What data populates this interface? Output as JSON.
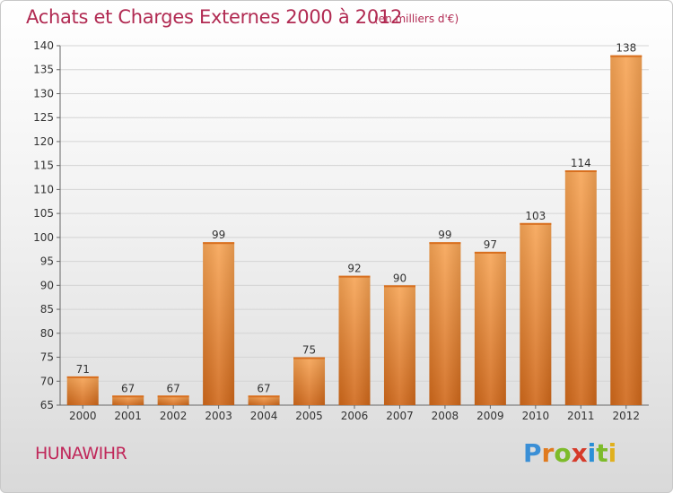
{
  "header": {
    "title": "Achats et Charges Externes 2000 à 2012",
    "subtitle": "(en milliers d'€)"
  },
  "footer": {
    "town": "HUNAWIHR",
    "logo_letters": [
      "P",
      "r",
      "o",
      "x",
      "i",
      "t",
      "i"
    ],
    "logo_colors": [
      "#3a8fd6",
      "#e07a1e",
      "#7dbb2a",
      "#d63a2a",
      "#2a8fd6",
      "#7dbb2a",
      "#e0b01e"
    ]
  },
  "chart_data": {
    "type": "bar",
    "title": "Achats et Charges Externes 2000 à 2012",
    "subtitle": "(en milliers d'€)",
    "xlabel": "",
    "ylabel": "",
    "categories": [
      "2000",
      "2001",
      "2002",
      "2003",
      "2004",
      "2005",
      "2006",
      "2007",
      "2008",
      "2009",
      "2010",
      "2011",
      "2012"
    ],
    "values": [
      71,
      67,
      67,
      99,
      67,
      75,
      92,
      90,
      99,
      97,
      103,
      114,
      138
    ],
    "ylim": [
      65,
      140
    ],
    "yticks": [
      65,
      70,
      75,
      80,
      85,
      90,
      95,
      100,
      105,
      110,
      115,
      120,
      125,
      130,
      135,
      140
    ],
    "grid": true,
    "bar_color": "#e8822e",
    "legend": "none"
  }
}
